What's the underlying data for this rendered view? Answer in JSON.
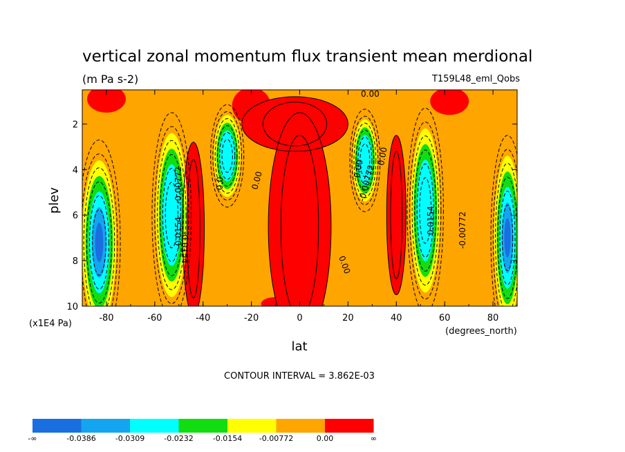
{
  "title": "vertical zonal momentum flux transient mean merdional",
  "units": "(m Pa s-2)",
  "run_label": "T159L48_eml_Qobs",
  "xlabel": "lat",
  "xunits": "(degrees_north)",
  "ylabel": "plev",
  "yunits": "(x1E4 Pa)",
  "contour_interval": "CONTOUR INTERVAL = 3.862E-03",
  "colors": {
    "lev0": "#1a6fe0",
    "lev1": "#14a5f0",
    "lev2": "#00ffff",
    "lev3": "#11dd11",
    "lev4": "#ffff00",
    "lev5": "#ffa500",
    "lev6": "#ff0000"
  },
  "contour_labels": [
    "0.00",
    "0.00",
    "-0.00772",
    "0.0154",
    "-0.0154",
    "0.0",
    "0.00",
    "0.00",
    "-0.00772",
    "0.00",
    "-0.0154",
    "-0.00772"
  ],
  "chart_data": {
    "type": "heatmap",
    "title": "vertical zonal momentum flux transient mean merdional",
    "subtitle": "(m Pa s-2)",
    "xlabel": "lat",
    "ylabel": "plev",
    "xlim": [
      -90,
      90
    ],
    "ylim": [
      10,
      0.5
    ],
    "x_ticks": [
      "-80",
      "-60",
      "-40",
      "-20",
      "0",
      "20",
      "40",
      "60",
      "80"
    ],
    "y_ticks": [
      "2",
      "4",
      "6",
      "8",
      "10"
    ],
    "colorbar_levels": [
      "-∞",
      "-0.0386",
      "-0.0309",
      "-0.0232",
      "-0.0154",
      "-0.00772",
      "0.00",
      "∞"
    ],
    "contour_interval": 0.003862,
    "features": [
      {
        "lat": -83,
        "plev": 7.5,
        "value": -0.04
      },
      {
        "lat": -53,
        "plev": 6.0,
        "value": -0.02
      },
      {
        "lat": -30,
        "plev": 3.3,
        "value": -0.02
      },
      {
        "lat": 27,
        "plev": 3.5,
        "value": -0.018
      },
      {
        "lat": 52,
        "plev": 5.5,
        "value": -0.02
      },
      {
        "lat": 85,
        "plev": 7.0,
        "value": -0.035
      },
      {
        "lat": -44,
        "plev": 6.5,
        "value": 0.004
      },
      {
        "lat": 0,
        "plev": 6.0,
        "value": 0.005
      },
      {
        "lat": 40,
        "plev": 6.0,
        "value": 0.004
      }
    ]
  }
}
